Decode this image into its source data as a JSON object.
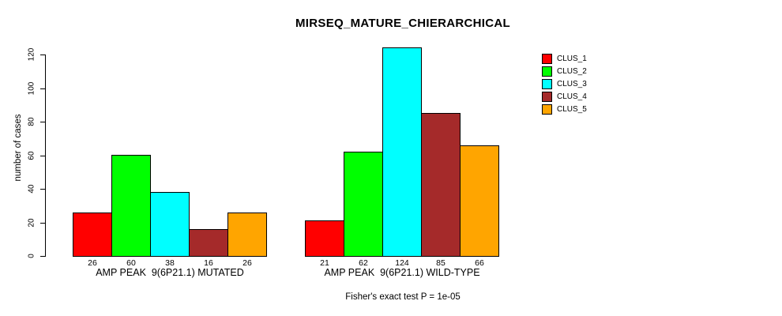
{
  "title": "MIRSEQ_MATURE_CHIERARCHICAL",
  "caption": "Fisher's exact test P = 1e-05",
  "y_axis": {
    "label": "number of cases"
  },
  "legend": {
    "position": "top-right",
    "items": [
      {
        "label": "CLUS_1",
        "color": "#FF0000"
      },
      {
        "label": "CLUS_2",
        "color": "#00FF00"
      },
      {
        "label": "CLUS_3",
        "color": "#00FFFF"
      },
      {
        "label": "CLUS_4",
        "color": "#A52A2A"
      },
      {
        "label": "CLUS_5",
        "color": "#FFA500"
      }
    ]
  },
  "chart_data": {
    "type": "bar",
    "title": "MIRSEQ_MATURE_CHIERARCHICAL",
    "ylabel": "number of cases",
    "xlabel": "",
    "ylim": [
      0,
      124
    ],
    "yticks": [
      0,
      20,
      40,
      60,
      80,
      100,
      120
    ],
    "grid": false,
    "legend_position": "top-right",
    "categories": [
      "AMP PEAK  9(6P21.1) MUTATED",
      "AMP PEAK  9(6P21.1) WILD-TYPE"
    ],
    "series": [
      {
        "name": "CLUS_1",
        "color": "#FF0000",
        "values": [
          26,
          21
        ]
      },
      {
        "name": "CLUS_2",
        "color": "#00FF00",
        "values": [
          60,
          62
        ]
      },
      {
        "name": "CLUS_3",
        "color": "#00FFFF",
        "values": [
          38,
          124
        ]
      },
      {
        "name": "CLUS_4",
        "color": "#A52A2A",
        "values": [
          16,
          85
        ]
      },
      {
        "name": "CLUS_5",
        "color": "#FFA500",
        "values": [
          26,
          66
        ]
      }
    ],
    "bar_value_labels_shown": true,
    "annotation": "Fisher's exact test P = 1e-05"
  }
}
